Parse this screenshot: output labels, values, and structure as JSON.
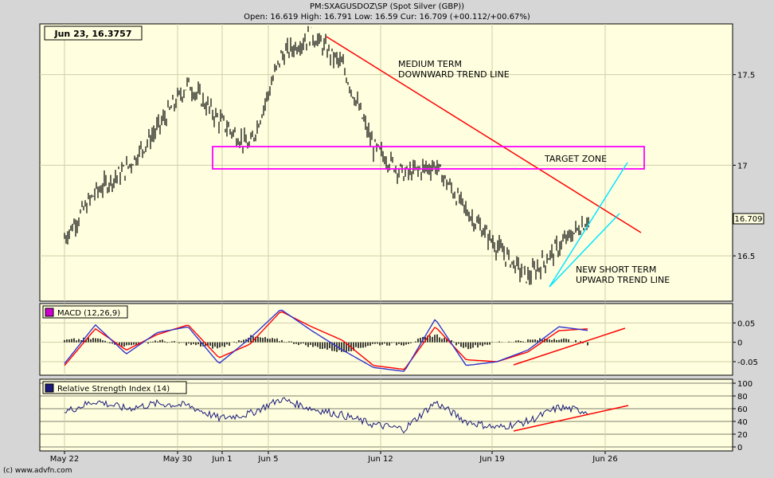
{
  "header": {
    "symbol_line": "PM:SXAGUSDOZ\\SP (Spot Silver (GBP))",
    "ohlc_line": "Open: 16.619 High: 16.791 Low: 16.59 Cur: 16.709 (+00.112/+00.67%)"
  },
  "footer": "(c) www.advfn.com",
  "cursor_readout": "Jun 23, 16.3757",
  "current_price_label": "16.709",
  "colors": {
    "background": "#ffffe0",
    "frame": "#d6d6d6",
    "price": "#000000",
    "trend_down": "#ff0000",
    "trend_up": "#00e5ff",
    "target_zone": "#ff00ff",
    "macd_line": "#3333cc",
    "signal_line": "#ff0000",
    "rsi_line": "#1a1a7a"
  },
  "chart_data": [
    {
      "type": "candlestick",
      "title": "PM:SXAGUSDOZ\\SP (Spot Silver (GBP))",
      "x_ticks": [
        "May 22",
        "May 30",
        "Jun 1",
        "Jun 5",
        "Jun 12",
        "Jun 19",
        "Jun 26"
      ],
      "y_ticks": [
        "16.5",
        "17",
        "17.5"
      ],
      "ylim": [
        16.25,
        17.78
      ],
      "series": [
        {
          "x": [
            "May 22",
            "May 24",
            "May 26",
            "May 28",
            "May 30",
            "Jun 1",
            "Jun 3",
            "Jun 5",
            "Jun 7",
            "Jun 9",
            "Jun 11",
            "Jun 13",
            "Jun 15",
            "Jun 17",
            "Jun 19",
            "Jun 21",
            "Jun 23",
            "Jun 25"
          ],
          "values": [
            16.6,
            16.85,
            16.98,
            17.2,
            17.45,
            17.25,
            17.1,
            17.6,
            17.72,
            17.55,
            17.1,
            16.95,
            17.0,
            16.75,
            16.55,
            16.38,
            16.55,
            16.709
          ]
        }
      ],
      "annotations": {
        "medium_term": [
          "MEDIUM TERM",
          "DOWNWARD TREND LINE"
        ],
        "target_zone": "TARGET ZONE",
        "short_term": [
          "NEW SHORT TERM",
          "UPWARD TREND LINE"
        ]
      }
    },
    {
      "type": "line",
      "legend": "MACD (12,26,9)",
      "y_ticks": [
        "0.05",
        "0",
        "-0.05"
      ],
      "ylim": [
        -0.085,
        0.1
      ],
      "x": [
        "May 22",
        "May 24",
        "May 26",
        "May 28",
        "May 30",
        "Jun 1",
        "Jun 3",
        "Jun 5",
        "Jun 7",
        "Jun 9",
        "Jun 11",
        "Jun 13",
        "Jun 15",
        "Jun 17",
        "Jun 19",
        "Jun 21",
        "Jun 23",
        "Jun 25"
      ],
      "series": [
        {
          "values": [
            -0.055,
            0.045,
            -0.03,
            0.025,
            0.04,
            -0.055,
            0.01,
            0.085,
            0.03,
            -0.02,
            -0.065,
            -0.075,
            0.06,
            -0.06,
            -0.05,
            -0.02,
            0.04,
            0.03
          ]
        },
        {
          "values": [
            -0.06,
            0.035,
            -0.02,
            0.02,
            0.045,
            -0.04,
            -0.005,
            0.08,
            0.04,
            0.005,
            -0.06,
            -0.07,
            0.04,
            -0.045,
            -0.05,
            -0.025,
            0.03,
            0.035
          ]
        }
      ]
    },
    {
      "type": "line",
      "legend": "Relative Strength Index (14)",
      "y_ticks": [
        "0",
        "20",
        "40",
        "60",
        "80",
        "100"
      ],
      "ylim": [
        0,
        100
      ],
      "x": [
        "May 22",
        "May 24",
        "May 26",
        "May 28",
        "May 30",
        "Jun 1",
        "Jun 3",
        "Jun 5",
        "Jun 7",
        "Jun 9",
        "Jun 11",
        "Jun 13",
        "Jun 15",
        "Jun 17",
        "Jun 19",
        "Jun 21",
        "Jun 23",
        "Jun 25"
      ],
      "series": [
        {
          "values": [
            55,
            72,
            60,
            68,
            65,
            45,
            52,
            75,
            60,
            50,
            35,
            28,
            70,
            40,
            30,
            40,
            62,
            55
          ]
        }
      ]
    }
  ]
}
